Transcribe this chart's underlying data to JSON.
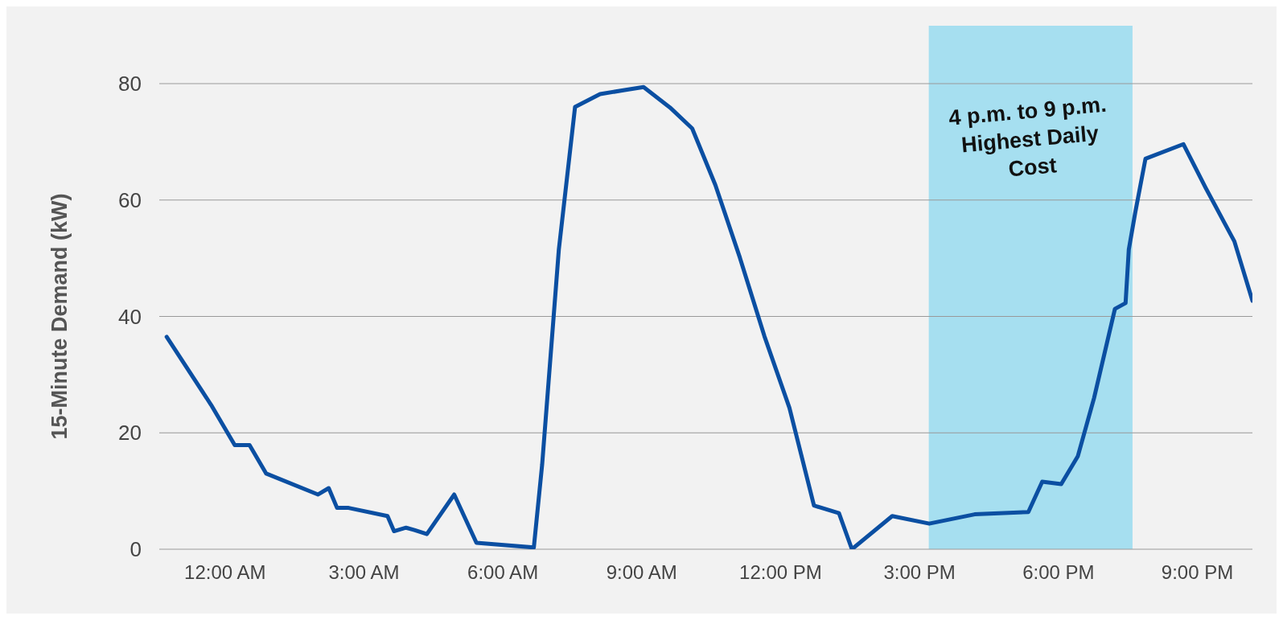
{
  "chart_data": {
    "type": "line",
    "ylabel": "15-Minute Demand (kW)",
    "x": [
      -1.26,
      -0.3,
      0.21,
      0.53,
      0.89,
      2.01,
      2.24,
      2.42,
      2.67,
      3.51,
      3.65,
      3.91,
      4.09,
      4.36,
      4.95,
      5.43,
      6.67,
      6.85,
      7.21,
      7.56,
      8.1,
      8.63,
      9.04,
      9.61,
      10.09,
      10.59,
      11.12,
      11.65,
      12.19,
      12.72,
      13.26,
      13.54,
      14.41,
      15.21,
      16.19,
      17.35,
      17.65,
      18.06,
      18.42,
      18.77,
      19.22,
      19.45,
      19.52,
      19.66,
      19.88,
      20.7,
      21.18,
      21.8,
      22.19
    ],
    "series": [
      {
        "color": "#0b4fa2",
        "values": [
          36.5,
          24.8,
          17.9,
          17.9,
          13.0,
          9.4,
          10.5,
          7.1,
          7.1,
          5.7,
          3.1,
          3.7,
          3.3,
          2.6,
          9.4,
          1.1,
          0.3,
          14.6,
          51.5,
          76.0,
          78.2,
          78.9,
          79.4,
          75.9,
          72.3,
          62.6,
          50.1,
          36.6,
          24.3,
          7.5,
          6.2,
          0,
          5.7,
          4.4,
          6.0,
          6.4,
          11.6,
          11.2,
          16.0,
          26.0,
          41.3,
          42.3,
          51.5,
          57.9,
          67.1,
          69.6,
          62.1,
          52.9,
          42.7
        ]
      }
    ],
    "xlim": [
      -1.42,
      22.19
    ],
    "xticks": [
      {
        "value": 0,
        "label": "12:00 AM"
      },
      {
        "value": 3,
        "label": "3:00 AM"
      },
      {
        "value": 6,
        "label": "6:00 AM"
      },
      {
        "value": 9,
        "label": "9:00 AM"
      },
      {
        "value": 12,
        "label": "12:00 PM"
      },
      {
        "value": 15,
        "label": "3:00 PM"
      },
      {
        "value": 18,
        "label": "6:00 PM"
      },
      {
        "value": 21,
        "label": "9:00 PM"
      }
    ],
    "ylim": [
      0,
      80
    ],
    "yticks": [
      0,
      20,
      40,
      60,
      80
    ],
    "bands": [
      {
        "axis": "x",
        "from": 15.2,
        "to": 19.6,
        "label": "4 p.m. to 9 p.m. Highest Daily Cost",
        "color": "#a6dff0"
      }
    ],
    "grid": "y",
    "marker": "none",
    "line_style": "solid"
  }
}
